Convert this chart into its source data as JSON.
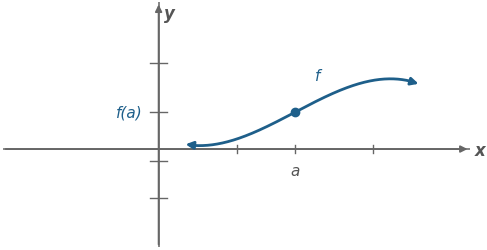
{
  "curve_color": "#1e5f8a",
  "dot_color": "#1e5f8a",
  "axis_color": "#666666",
  "text_color": "#1e5f8a",
  "axis_text_color": "#555555",
  "label_f": "f",
  "label_fa": "f(a)",
  "label_a": "a",
  "label_x": "x",
  "label_y": "y",
  "xlim": [
    -4,
    8
  ],
  "ylim": [
    -4,
    6
  ],
  "a_x": 3.5,
  "a_y": 1.5,
  "background_color": "#ffffff"
}
